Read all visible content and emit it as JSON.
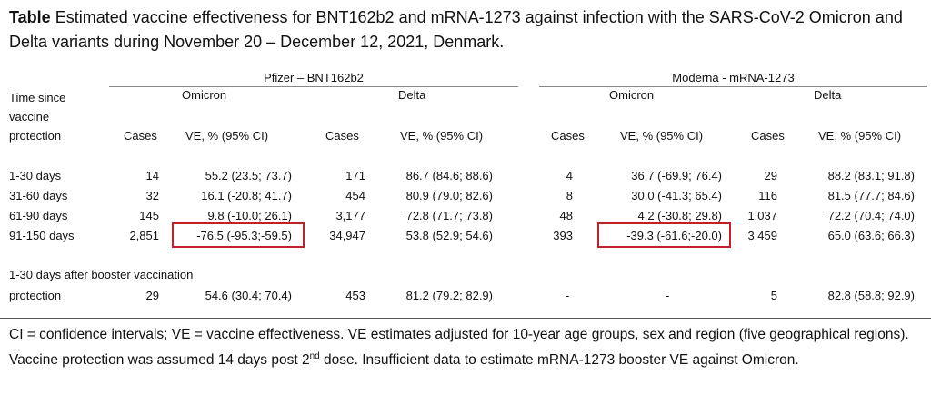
{
  "caption": {
    "label": "Table",
    "text": "Estimated vaccine effectiveness for BNT162b2 and mRNA-1273 against infection with the SARS-CoV-2 Omicron and Delta variants during November 20 – December 12, 2021, Denmark."
  },
  "groups": {
    "pfizer": "Pfizer – BNT162b2",
    "moderna": "Moderna - mRNA-1273"
  },
  "variants": {
    "omicron": "Omicron",
    "delta": "Delta"
  },
  "stub_header": {
    "line1": "Time since",
    "line2": "vaccine",
    "line3": "protection"
  },
  "col_headers": {
    "cases": "Cases",
    "ve": "VE, % (95% CI)"
  },
  "rows": [
    {
      "label": "1-30 days",
      "p_om_cases": "14",
      "p_om_ve": "55.2 (23.5; 73.7)",
      "p_de_cases": "171",
      "p_de_ve": "86.7 (84.6; 88.6)",
      "m_om_cases": "4",
      "m_om_ve": "36.7 (-69.9; 76.4)",
      "m_de_cases": "29",
      "m_de_ve": "88.2 (83.1; 91.8)"
    },
    {
      "label": "31-60 days",
      "p_om_cases": "32",
      "p_om_ve": "16.1 (-20.8; 41.7)",
      "p_de_cases": "454",
      "p_de_ve": "80.9 (79.0; 82.6)",
      "m_om_cases": "8",
      "m_om_ve": "30.0 (-41.3; 65.4)",
      "m_de_cases": "116",
      "m_de_ve": "81.5 (77.7; 84.6)"
    },
    {
      "label": "61-90 days",
      "p_om_cases": "145",
      "p_om_ve": "9.8 (-10.0; 26.1)",
      "p_de_cases": "3,177",
      "p_de_ve": "72.8 (71.7; 73.8)",
      "m_om_cases": "48",
      "m_om_ve": "4.2 (-30.8; 29.8)",
      "m_de_cases": "1,037",
      "m_de_ve": "72.2 (70.4; 74.0)"
    },
    {
      "label": "91-150 days",
      "p_om_cases": "2,851",
      "p_om_ve": "-76.5 (-95.3;-59.5)",
      "p_de_cases": "34,947",
      "p_de_ve": "53.8 (52.9; 54.6)",
      "m_om_cases": "393",
      "m_om_ve": "-39.3 (-61.6;-20.0)",
      "m_de_cases": "3,459",
      "m_de_ve": "65.0 (63.6; 66.3)"
    }
  ],
  "booster": {
    "label1": "1-30 days after booster vaccination",
    "label2": "protection",
    "p_om_cases": "29",
    "p_om_ve": "54.6 (30.4; 70.4)",
    "p_de_cases": "453",
    "p_de_ve": "81.2 (79.2; 82.9)",
    "m_om_cases": "-",
    "m_om_ve": "-",
    "m_de_cases": "5",
    "m_de_ve": "82.8 (58.8; 92.9)"
  },
  "footnote": {
    "part1": "CI = confidence intervals; VE = vaccine effectiveness. VE estimates adjusted for 10-year age groups, sex and region (five geographical regions). Vaccine protection was assumed 14 days post 2",
    "sup": "nd",
    "part2": " dose. Insufficient data to estimate mRNA-1273 booster VE against Omicron."
  },
  "highlight_color": "#c0202a"
}
